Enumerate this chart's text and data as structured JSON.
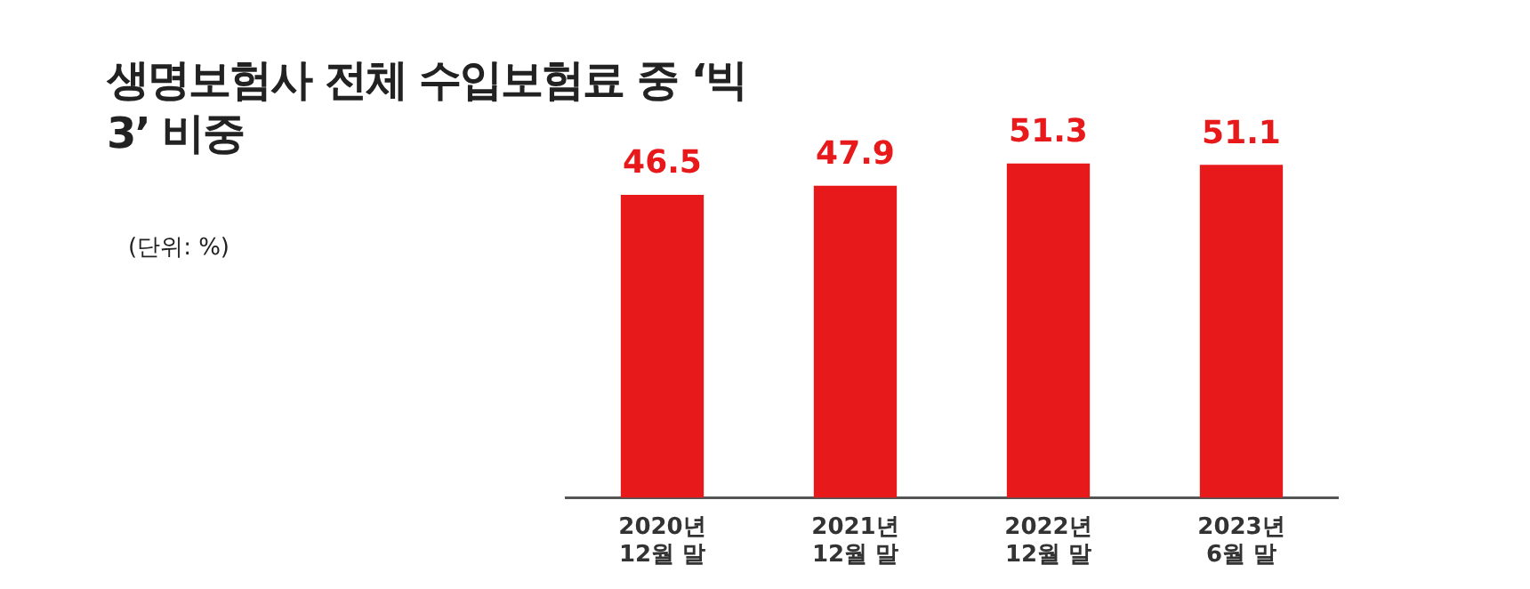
{
  "chart_data": {
    "type": "bar",
    "title": "생명보험사 전체 수입보험료 중 ‘빅3’ 비중",
    "subtitle": "(단위: %)",
    "categories": [
      "2020년 12월 말",
      "2021년 12월 말",
      "2022년 12월 말",
      "2023년 6월 말"
    ],
    "values": [
      46.5,
      47.9,
      51.3,
      51.1
    ],
    "color": "#e8191b",
    "data_labels": true,
    "grid": false,
    "legend": false,
    "tick_labels": "x"
  }
}
